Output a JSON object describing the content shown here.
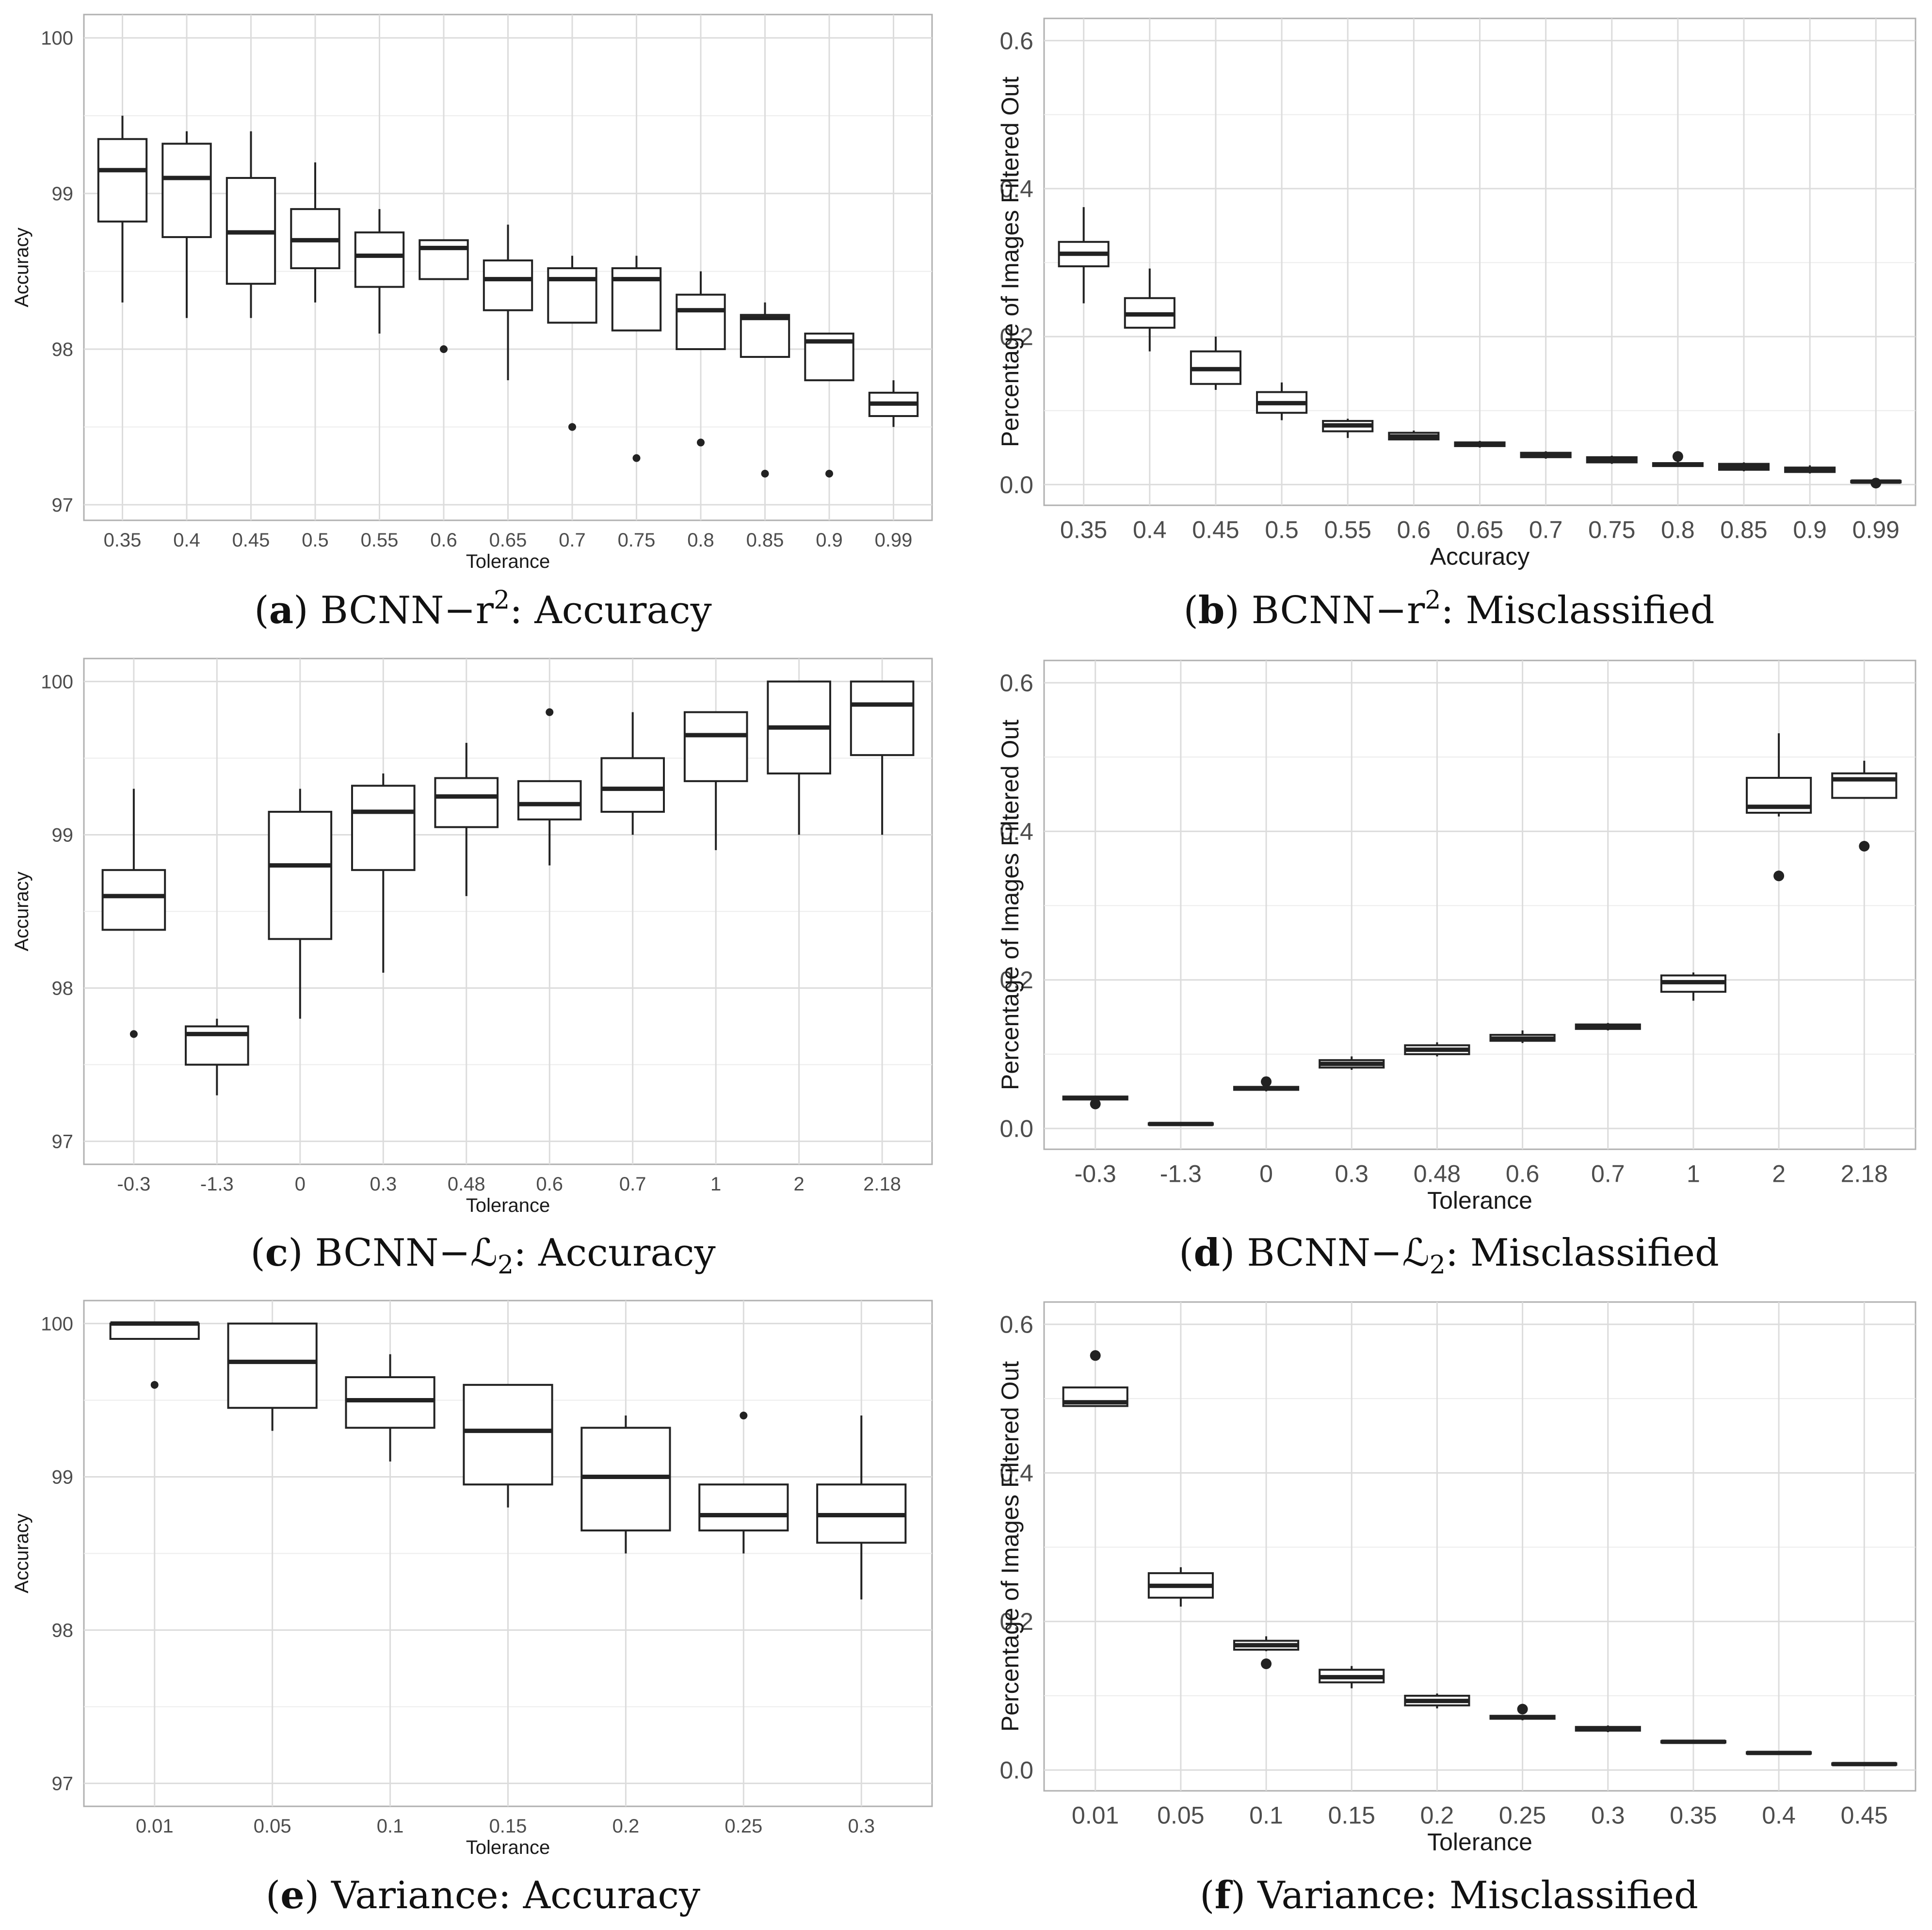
{
  "chart_data": [
    {
      "type": "boxplot",
      "panel": "a",
      "caption": {
        "letter": "a",
        "text_before": "BCNN−r",
        "sup": "2",
        "text_after": ": Accuracy"
      },
      "xlabel": "Tolerance",
      "ylabel": "Accuracy",
      "ylim": [
        96.9,
        100.15
      ],
      "yticks": [
        97,
        98,
        99,
        100
      ],
      "grid": true,
      "categories": [
        "0.35",
        "0.4",
        "0.45",
        "0.5",
        "0.55",
        "0.6",
        "0.65",
        "0.7",
        "0.75",
        "0.8",
        "0.85",
        "0.9",
        "0.99"
      ],
      "boxes": [
        {
          "min": 98.3,
          "q1": 98.82,
          "median": 99.15,
          "q3": 99.35,
          "max": 99.5,
          "outliers": []
        },
        {
          "min": 98.2,
          "q1": 98.72,
          "median": 99.1,
          "q3": 99.32,
          "max": 99.4,
          "outliers": []
        },
        {
          "min": 98.2,
          "q1": 98.42,
          "median": 98.75,
          "q3": 99.1,
          "max": 99.4,
          "outliers": []
        },
        {
          "min": 98.3,
          "q1": 98.52,
          "median": 98.7,
          "q3": 98.9,
          "max": 99.2,
          "outliers": []
        },
        {
          "min": 98.1,
          "q1": 98.4,
          "median": 98.6,
          "q3": 98.75,
          "max": 98.9,
          "outliers": []
        },
        {
          "min": 98.45,
          "q1": 98.45,
          "median": 98.65,
          "q3": 98.7,
          "max": 98.7,
          "outliers": [
            98.0
          ]
        },
        {
          "min": 97.8,
          "q1": 98.25,
          "median": 98.45,
          "q3": 98.57,
          "max": 98.8,
          "outliers": []
        },
        {
          "min": 98.17,
          "q1": 98.17,
          "median": 98.45,
          "q3": 98.52,
          "max": 98.6,
          "outliers": [
            97.5
          ]
        },
        {
          "min": 98.12,
          "q1": 98.12,
          "median": 98.45,
          "q3": 98.52,
          "max": 98.6,
          "outliers": [
            97.3
          ]
        },
        {
          "min": 98.0,
          "q1": 98.0,
          "median": 98.25,
          "q3": 98.35,
          "max": 98.5,
          "outliers": [
            97.4
          ]
        },
        {
          "min": 97.95,
          "q1": 97.95,
          "median": 98.2,
          "q3": 98.22,
          "max": 98.3,
          "outliers": [
            97.2
          ]
        },
        {
          "min": 97.8,
          "q1": 97.8,
          "median": 98.05,
          "q3": 98.1,
          "max": 98.1,
          "outliers": [
            97.2
          ]
        },
        {
          "min": 97.5,
          "q1": 97.57,
          "median": 97.65,
          "q3": 97.72,
          "max": 97.8,
          "outliers": []
        }
      ]
    },
    {
      "type": "boxplot",
      "panel": "b",
      "caption": {
        "letter": "b",
        "text_before": "BCNN−r",
        "sup": "2",
        "text_after": ": Misclassified"
      },
      "xlabel": "Accuracy",
      "ylabel": "Percentage of Images Filtered Out",
      "ylim": [
        -0.028,
        0.63
      ],
      "yticks": [
        0.0,
        0.2,
        0.4,
        0.6
      ],
      "grid": true,
      "categories": [
        "0.35",
        "0.4",
        "0.45",
        "0.5",
        "0.55",
        "0.6",
        "0.65",
        "0.7",
        "0.75",
        "0.8",
        "0.85",
        "0.9",
        "0.99"
      ],
      "boxes": [
        {
          "min": 0.245,
          "q1": 0.295,
          "median": 0.312,
          "q3": 0.328,
          "max": 0.375,
          "outliers": []
        },
        {
          "min": 0.18,
          "q1": 0.212,
          "median": 0.23,
          "q3": 0.252,
          "max": 0.292,
          "outliers": []
        },
        {
          "min": 0.128,
          "q1": 0.136,
          "median": 0.156,
          "q3": 0.18,
          "max": 0.2,
          "outliers": []
        },
        {
          "min": 0.087,
          "q1": 0.097,
          "median": 0.11,
          "q3": 0.125,
          "max": 0.138,
          "outliers": []
        },
        {
          "min": 0.063,
          "q1": 0.072,
          "median": 0.08,
          "q3": 0.086,
          "max": 0.089,
          "outliers": []
        },
        {
          "min": 0.06,
          "q1": 0.061,
          "median": 0.065,
          "q3": 0.07,
          "max": 0.073,
          "outliers": []
        },
        {
          "min": 0.05,
          "q1": 0.052,
          "median": 0.055,
          "q3": 0.057,
          "max": 0.059,
          "outliers": []
        },
        {
          "min": 0.035,
          "q1": 0.037,
          "median": 0.04,
          "q3": 0.043,
          "max": 0.045,
          "outliers": []
        },
        {
          "min": 0.028,
          "q1": 0.03,
          "median": 0.033,
          "q3": 0.037,
          "max": 0.039,
          "outliers": []
        },
        {
          "min": 0.024,
          "q1": 0.025,
          "median": 0.027,
          "q3": 0.029,
          "max": 0.031,
          "outliers": [
            0.038
          ]
        },
        {
          "min": 0.018,
          "q1": 0.02,
          "median": 0.024,
          "q3": 0.028,
          "max": 0.03,
          "outliers": []
        },
        {
          "min": 0.015,
          "q1": 0.017,
          "median": 0.02,
          "q3": 0.023,
          "max": 0.026,
          "outliers": []
        },
        {
          "min": 0.002,
          "q1": 0.003,
          "median": 0.004,
          "q3": 0.005,
          "max": 0.006,
          "outliers": [
            0.002
          ]
        }
      ]
    },
    {
      "type": "boxplot",
      "panel": "c",
      "caption": {
        "letter": "c",
        "text_before": "BCNN−ℒ",
        "sub": "2",
        "text_after": ": Accuracy"
      },
      "xlabel": "Tolerance",
      "ylabel": "Accuracy",
      "ylim": [
        96.85,
        100.15
      ],
      "yticks": [
        97,
        98,
        99,
        100
      ],
      "grid": true,
      "categories": [
        "-0.3",
        "-1.3",
        "0",
        "0.3",
        "0.48",
        "0.6",
        "0.7",
        "1",
        "2",
        "2.18"
      ],
      "boxes": [
        {
          "min": 98.38,
          "q1": 98.38,
          "median": 98.6,
          "q3": 98.77,
          "max": 99.3,
          "outliers": [
            97.7
          ]
        },
        {
          "min": 97.3,
          "q1": 97.5,
          "median": 97.7,
          "q3": 97.75,
          "max": 97.8,
          "outliers": []
        },
        {
          "min": 97.8,
          "q1": 98.32,
          "median": 98.8,
          "q3": 99.15,
          "max": 99.3,
          "outliers": []
        },
        {
          "min": 98.1,
          "q1": 98.77,
          "median": 99.15,
          "q3": 99.32,
          "max": 99.4,
          "outliers": []
        },
        {
          "min": 98.6,
          "q1": 99.05,
          "median": 99.25,
          "q3": 99.37,
          "max": 99.6,
          "outliers": []
        },
        {
          "min": 98.8,
          "q1": 99.1,
          "median": 99.2,
          "q3": 99.35,
          "max": 99.35,
          "outliers": [
            99.8
          ]
        },
        {
          "min": 99.0,
          "q1": 99.15,
          "median": 99.3,
          "q3": 99.5,
          "max": 99.8,
          "outliers": []
        },
        {
          "min": 98.9,
          "q1": 99.35,
          "median": 99.65,
          "q3": 99.8,
          "max": 99.8,
          "outliers": []
        },
        {
          "min": 99.0,
          "q1": 99.4,
          "median": 99.7,
          "q3": 100.0,
          "max": 100.0,
          "outliers": []
        },
        {
          "min": 99.0,
          "q1": 99.52,
          "median": 99.85,
          "q3": 100.0,
          "max": 100.0,
          "outliers": []
        }
      ]
    },
    {
      "type": "boxplot",
      "panel": "d",
      "caption": {
        "letter": "d",
        "text_before": "BCNN−ℒ",
        "sub": "2",
        "text_after": ": Misclassified"
      },
      "xlabel": "Tolerance",
      "ylabel": "Percentage of Images Filtered Out",
      "ylim": [
        -0.028,
        0.63
      ],
      "yticks": [
        0.0,
        0.2,
        0.4,
        0.6
      ],
      "grid": true,
      "categories": [
        "-0.3",
        "-1.3",
        "0",
        "0.3",
        "0.48",
        "0.6",
        "0.7",
        "1",
        "2",
        "2.18"
      ],
      "boxes": [
        {
          "min": 0.038,
          "q1": 0.039,
          "median": 0.041,
          "q3": 0.043,
          "max": 0.044,
          "outliers": [
            0.033
          ]
        },
        {
          "min": 0.005,
          "q1": 0.005,
          "median": 0.006,
          "q3": 0.007,
          "max": 0.007,
          "outliers": []
        },
        {
          "min": 0.05,
          "q1": 0.052,
          "median": 0.054,
          "q3": 0.056,
          "max": 0.058,
          "outliers": [
            0.063
          ]
        },
        {
          "min": 0.079,
          "q1": 0.082,
          "median": 0.087,
          "q3": 0.092,
          "max": 0.097,
          "outliers": []
        },
        {
          "min": 0.097,
          "q1": 0.1,
          "median": 0.106,
          "q3": 0.112,
          "max": 0.116,
          "outliers": []
        },
        {
          "min": 0.115,
          "q1": 0.118,
          "median": 0.121,
          "q3": 0.126,
          "max": 0.132,
          "outliers": []
        },
        {
          "min": 0.132,
          "q1": 0.134,
          "median": 0.137,
          "q3": 0.14,
          "max": 0.142,
          "outliers": []
        },
        {
          "min": 0.172,
          "q1": 0.184,
          "median": 0.197,
          "q3": 0.206,
          "max": 0.21,
          "outliers": []
        },
        {
          "min": 0.42,
          "q1": 0.425,
          "median": 0.433,
          "q3": 0.472,
          "max": 0.532,
          "outliers": [
            0.34
          ]
        },
        {
          "min": 0.445,
          "q1": 0.445,
          "median": 0.47,
          "q3": 0.478,
          "max": 0.495,
          "outliers": [
            0.38
          ]
        }
      ]
    },
    {
      "type": "boxplot",
      "panel": "e",
      "caption": {
        "letter": "e",
        "text_before": "Variance: Accuracy"
      },
      "xlabel": "Tolerance",
      "ylabel": "Accuracy",
      "ylim": [
        96.85,
        100.15
      ],
      "yticks": [
        97,
        98,
        99,
        100
      ],
      "grid": true,
      "categories": [
        "0.01",
        "0.05",
        "0.1",
        "0.15",
        "0.2",
        "0.25",
        "0.3"
      ],
      "boxes": [
        {
          "min": 99.9,
          "q1": 99.9,
          "median": 100.0,
          "q3": 100.0,
          "max": 100.0,
          "outliers": [
            99.6
          ]
        },
        {
          "min": 99.3,
          "q1": 99.45,
          "median": 99.75,
          "q3": 100.0,
          "max": 100.0,
          "outliers": []
        },
        {
          "min": 99.1,
          "q1": 99.32,
          "median": 99.5,
          "q3": 99.65,
          "max": 99.8,
          "outliers": []
        },
        {
          "min": 98.8,
          "q1": 98.95,
          "median": 99.3,
          "q3": 99.6,
          "max": 99.6,
          "outliers": []
        },
        {
          "min": 98.5,
          "q1": 98.65,
          "median": 99.0,
          "q3": 99.32,
          "max": 99.4,
          "outliers": []
        },
        {
          "min": 98.5,
          "q1": 98.65,
          "median": 98.75,
          "q3": 98.95,
          "max": 98.95,
          "outliers": [
            99.4
          ]
        },
        {
          "min": 98.2,
          "q1": 98.57,
          "median": 98.75,
          "q3": 98.95,
          "max": 99.4,
          "outliers": []
        }
      ]
    },
    {
      "type": "boxplot",
      "panel": "f",
      "caption": {
        "letter": "f",
        "text_before": "Variance: Misclassified"
      },
      "xlabel": "Tolerance",
      "ylabel": "Percentage of Images Filtered Out",
      "ylim": [
        -0.028,
        0.63
      ],
      "yticks": [
        0.0,
        0.2,
        0.4,
        0.6
      ],
      "grid": true,
      "categories": [
        "0.01",
        "0.05",
        "0.1",
        "0.15",
        "0.2",
        "0.25",
        "0.3",
        "0.35",
        "0.4",
        "0.45"
      ],
      "boxes": [
        {
          "min": 0.49,
          "q1": 0.49,
          "median": 0.495,
          "q3": 0.515,
          "max": 0.515,
          "outliers": [
            0.558
          ]
        },
        {
          "min": 0.22,
          "q1": 0.232,
          "median": 0.248,
          "q3": 0.265,
          "max": 0.273,
          "outliers": []
        },
        {
          "min": 0.16,
          "q1": 0.162,
          "median": 0.168,
          "q3": 0.174,
          "max": 0.18,
          "outliers": [
            0.143
          ]
        },
        {
          "min": 0.11,
          "q1": 0.118,
          "median": 0.125,
          "q3": 0.135,
          "max": 0.14,
          "outliers": []
        },
        {
          "min": 0.083,
          "q1": 0.087,
          "median": 0.093,
          "q3": 0.1,
          "max": 0.103,
          "outliers": []
        },
        {
          "min": 0.067,
          "q1": 0.069,
          "median": 0.071,
          "q3": 0.073,
          "max": 0.074,
          "outliers": [
            0.082
          ]
        },
        {
          "min": 0.051,
          "q1": 0.053,
          "median": 0.055,
          "q3": 0.058,
          "max": 0.06,
          "outliers": []
        },
        {
          "min": 0.036,
          "q1": 0.037,
          "median": 0.038,
          "q3": 0.039,
          "max": 0.04,
          "outliers": []
        },
        {
          "min": 0.021,
          "q1": 0.022,
          "median": 0.023,
          "q3": 0.024,
          "max": 0.025,
          "outliers": []
        },
        {
          "min": 0.006,
          "q1": 0.007,
          "median": 0.008,
          "q3": 0.009,
          "max": 0.01,
          "outliers": []
        }
      ]
    }
  ]
}
